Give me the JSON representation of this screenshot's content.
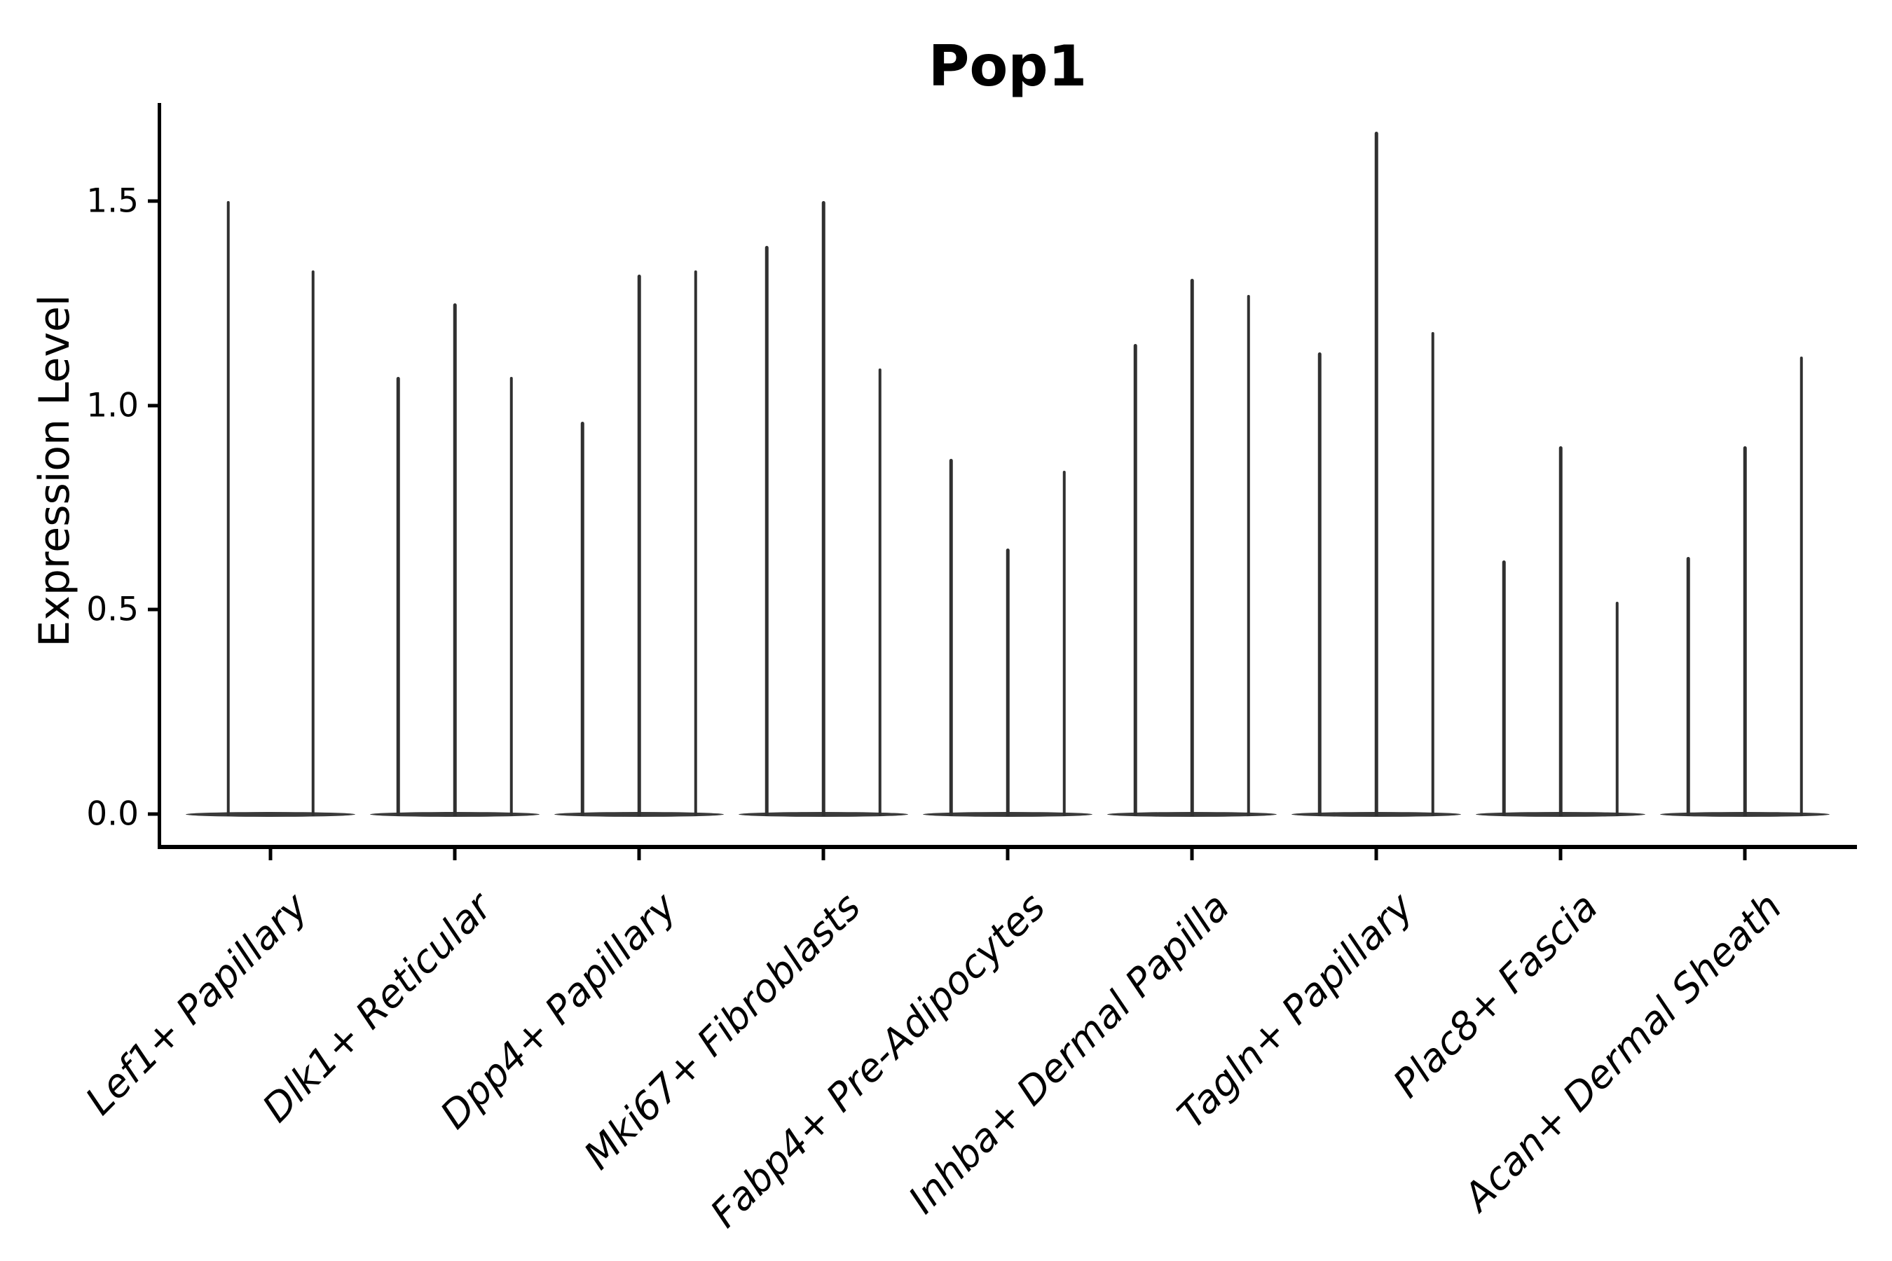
{
  "page": {
    "background": "#ffffff"
  },
  "chart_data": {
    "type": "violin",
    "title": "Pop1",
    "xlabel": "",
    "ylabel": "Expression Level",
    "yticks": [
      0.0,
      0.5,
      1.0,
      1.5
    ],
    "ytick_labels": [
      "0.0",
      "0.5",
      "1.0",
      "1.5"
    ],
    "ylim": [
      -0.08,
      1.74
    ],
    "grid": false,
    "legend": "none",
    "style": "single-cell expression violin plot; each violin is a needle-thin spike rising from a wide flat base at expression 0",
    "colors": {
      "violin_line": "#303030",
      "violin_base": "#3a3a3a",
      "axis": "#000000",
      "text": "#000000",
      "background": "#ffffff"
    },
    "categories": [
      "Lef1+ Papillary",
      "Dlk1+ Reticular",
      "Dpp4+ Papillary",
      "Mki67+ Fibroblasts",
      "Fabp4+ Pre-Adipocytes",
      "Inhba+ Dermal Papilla",
      "Tagln+ Papillary",
      "Plac8+ Fascia",
      "Acan+ Dermal Sheath"
    ],
    "groups": [
      {
        "label": "Lef1+ Papillary",
        "violin_maxima": [
          1.5,
          1.33
        ]
      },
      {
        "label": "Dlk1+ Reticular",
        "violin_maxima": [
          1.07,
          1.25,
          1.07
        ]
      },
      {
        "label": "Dpp4+ Papillary",
        "violin_maxima": [
          0.96,
          1.32,
          1.33
        ]
      },
      {
        "label": "Mki67+ Fibroblasts",
        "violin_maxima": [
          1.39,
          1.5,
          1.09
        ]
      },
      {
        "label": "Fabp4+ Pre-Adipocytes",
        "violin_maxima": [
          0.87,
          0.65,
          0.84
        ]
      },
      {
        "label": "Inhba+ Dermal Papilla",
        "violin_maxima": [
          1.15,
          1.31,
          1.27
        ]
      },
      {
        "label": "Tagln+ Papillary",
        "violin_maxima": [
          1.13,
          1.67,
          1.18
        ]
      },
      {
        "label": "Plac8+ Fascia",
        "violin_maxima": [
          0.62,
          0.9,
          0.52
        ]
      },
      {
        "label": "Acan+ Dermal Sheath",
        "violin_maxima": [
          0.63,
          0.9,
          1.12
        ]
      }
    ],
    "violin_min": 0.0
  }
}
